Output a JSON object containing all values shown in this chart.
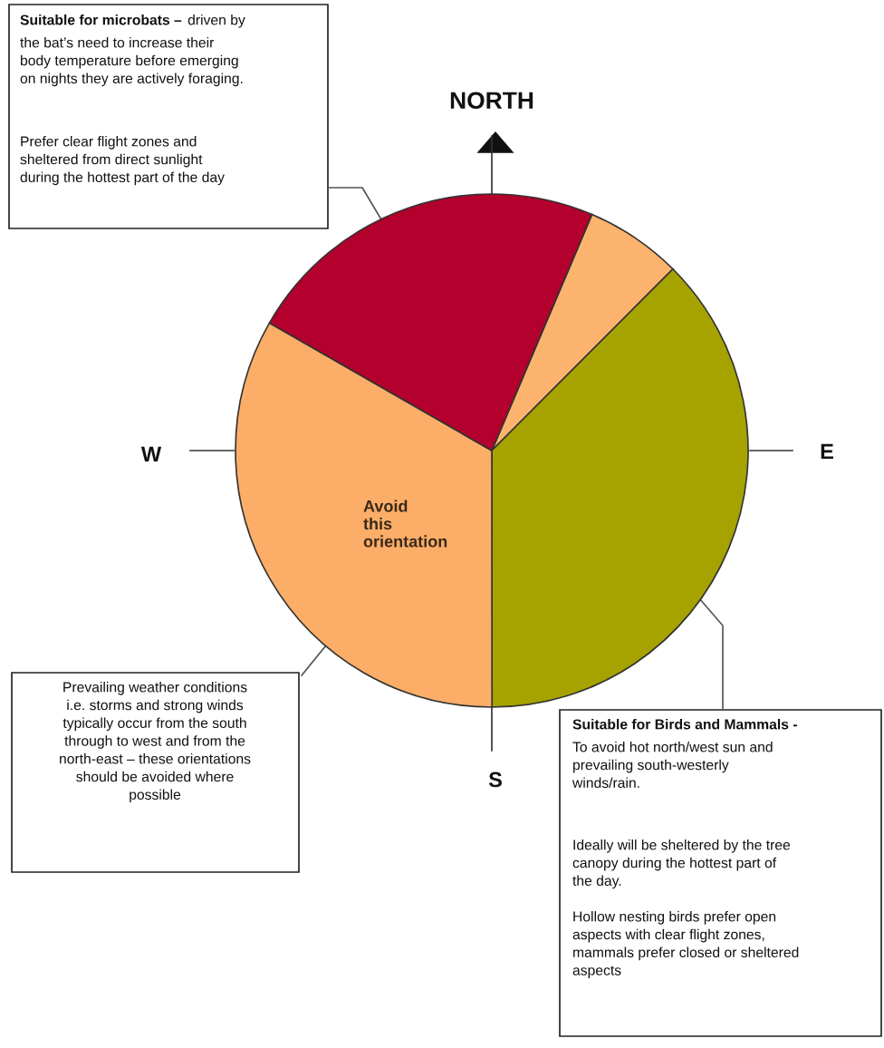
{
  "chart_data": {
    "type": "pie",
    "categories": [
      null,
      null,
      "Avoid this orientation",
      null
    ],
    "values": [
      6.1,
      37.5,
      33.3,
      23.1
    ],
    "colors": [
      "#fcb36e",
      "#a6a300",
      "#fcae68",
      "#b3002c"
    ],
    "annotations": [
      "Suitable for microbats –",
      "driven by\nthe bat’s need to increase their\nbody temperature before emerging\non nights they are actively foraging.",
      "Prefer clear flight zones and\nsheltered from direct sunlight\nduring the hottest part of the day",
      "Prevailing weather conditions\ni.e. storms and strong winds\ntypically occur from the south\nthrough to west and from the\nnorth-east – these orientations\nshould be avoided where\npossible",
      "Suitable for Birds and Mammals -",
      "To avoid hot north/west sun and\nprevailing south-westerly\nwinds/rain.",
      "Ideally will be sheltered by the tree\ncanopy during the hottest part of\nthe day.",
      "Hollow nesting birds prefer open\naspects with clear flight zones,\nmammals prefer closed or sheltered\naspects",
      "NORTH",
      "W",
      "E",
      "S"
    ]
  }
}
